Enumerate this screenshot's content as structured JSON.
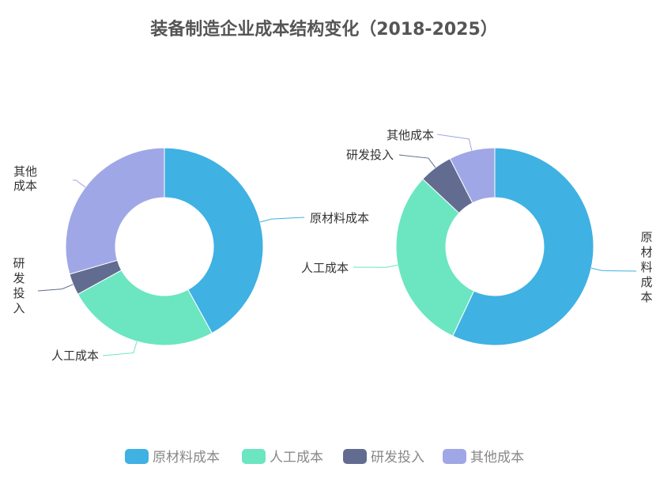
{
  "chart_data": {
    "type": "pie",
    "variant": "donut",
    "title": "装备制造企业成本结构变化（2018-2025）",
    "legend": {
      "position": "bottom",
      "entries": [
        "原材料成本",
        "人工成本",
        "研发投入",
        "其他成本"
      ]
    },
    "colors": [
      "#3fb1e3",
      "#6be6c1",
      "#626c91",
      "#a0a7e6"
    ],
    "charts": [
      {
        "categories": [
          "原材料成本",
          "人工成本",
          "研发投入",
          "其他成本"
        ],
        "values": [
          42,
          25,
          3.5,
          29.5
        ]
      },
      {
        "categories": [
          "原材料成本",
          "人工成本",
          "研发投入",
          "其他成本"
        ],
        "values": [
          57,
          30,
          5.5,
          7.5
        ]
      }
    ]
  }
}
